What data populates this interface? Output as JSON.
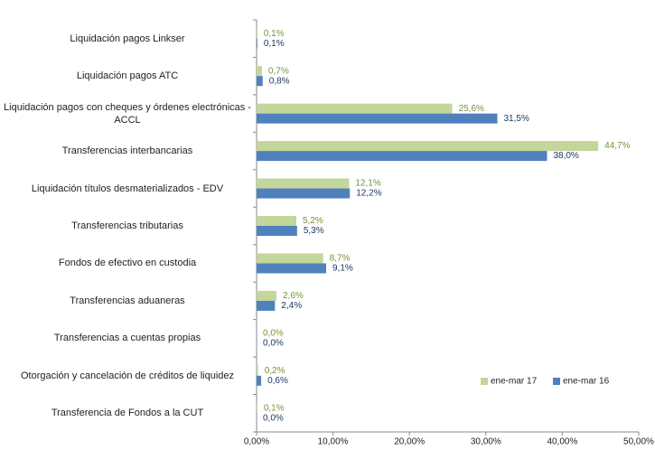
{
  "chart_data": {
    "type": "bar",
    "orientation": "horizontal",
    "categories": [
      "Liquidación pagos Linkser",
      "Liquidación pagos ATC",
      "Liquidación pagos con cheques y órdenes electrónicas - ACCL",
      "Transferencias interbancarias",
      "Liquidación títulos desmaterializados - EDV",
      "Transferencias tributarias",
      "Fondos de efectivo en custodia",
      "Transferencias aduaneras",
      "Transferencias a cuentas propias",
      "Otorgación y cancelación de créditos de liquidez",
      "Transferencia de Fondos a la CUT"
    ],
    "series": [
      {
        "name": "ene-mar 17",
        "color": "#c3d69b",
        "label_color": "#77933c",
        "values": [
          0.1,
          0.7,
          25.6,
          44.7,
          12.1,
          5.2,
          8.7,
          2.6,
          0.0,
          0.2,
          0.1
        ],
        "value_labels": [
          "0,1%",
          "0,7%",
          "25,6%",
          "44,7%",
          "12,1%",
          "5,2%",
          "8,7%",
          "2,6%",
          "0,0%",
          "0,2%",
          "0,1%"
        ]
      },
      {
        "name": "ene-mar 16",
        "color": "#4f81bd",
        "label_color": "#1f3864",
        "values": [
          0.1,
          0.8,
          31.5,
          38.0,
          12.2,
          5.3,
          9.1,
          2.4,
          0.0,
          0.6,
          0.0
        ],
        "value_labels": [
          "0,1%",
          "0,8%",
          "31,5%",
          "38,0%",
          "12,2%",
          "5,3%",
          "9,1%",
          "2,4%",
          "0,0%",
          "0,6%",
          "0,0%"
        ]
      }
    ],
    "xlim": [
      0,
      50
    ],
    "xticks": [
      {
        "value": 0,
        "label": "0,00%"
      },
      {
        "value": 10,
        "label": "10,00%"
      },
      {
        "value": 20,
        "label": "20,00%"
      },
      {
        "value": 30,
        "label": "30,00%"
      },
      {
        "value": 40,
        "label": "40,00%"
      },
      {
        "value": 50,
        "label": "50,00%"
      }
    ],
    "legend": "lower right"
  }
}
